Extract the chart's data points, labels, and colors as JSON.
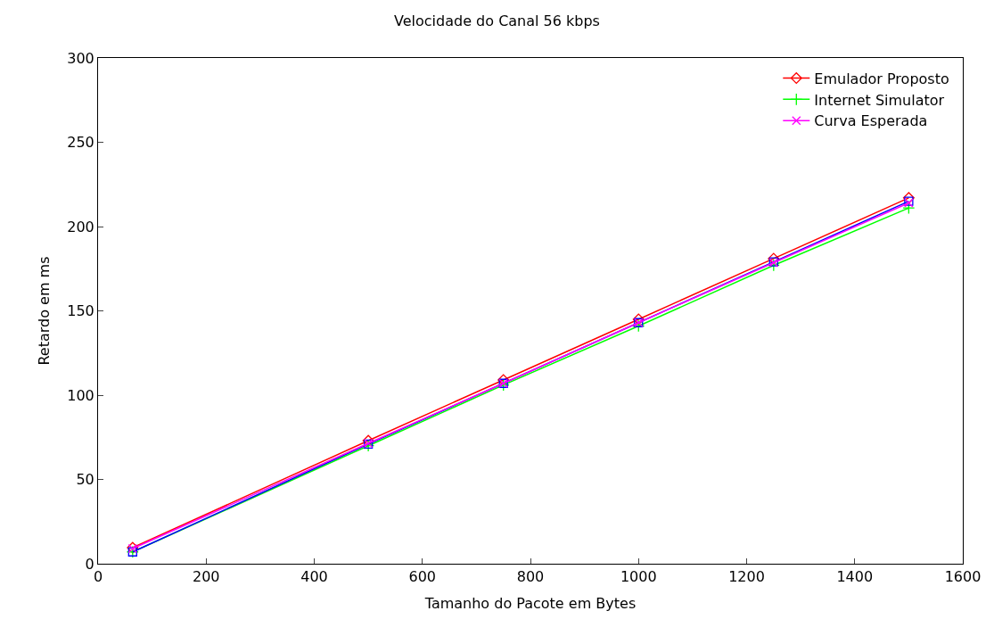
{
  "chart_data": {
    "type": "line",
    "title": "Velocidade do Canal 56 kbps",
    "xlabel": "Tamanho do Pacote em Bytes",
    "ylabel": "Retardo em ms",
    "x": [
      64,
      500,
      750,
      1000,
      1250,
      1500
    ],
    "series": [
      {
        "name": "Emulador Proposto",
        "color": "#ff0000",
        "marker": "diamond",
        "values": [
          9.5,
          73,
          109,
          145,
          181,
          217
        ]
      },
      {
        "name": "Internet Simulator",
        "color": "#00ff00",
        "marker": "cross",
        "values": [
          7,
          70,
          106,
          141,
          177,
          211
        ]
      },
      {
        "color": "#0000ff",
        "marker": "square",
        "values": [
          7,
          71,
          107,
          143,
          179,
          215
        ]
      },
      {
        "name": "Curva Esperada",
        "color": "#ff00ff",
        "marker": "x",
        "values": [
          9,
          71.4,
          107,
          143,
          178.6,
          214
        ]
      }
    ],
    "xlim": [
      0,
      1600
    ],
    "xticks": [
      0,
      200,
      400,
      600,
      800,
      1000,
      1200,
      1400,
      1600
    ],
    "ylim": [
      0,
      300
    ],
    "yticks": [
      0,
      50,
      100,
      150,
      200,
      250,
      300
    ],
    "legend": "top right",
    "line_style": "solid"
  }
}
